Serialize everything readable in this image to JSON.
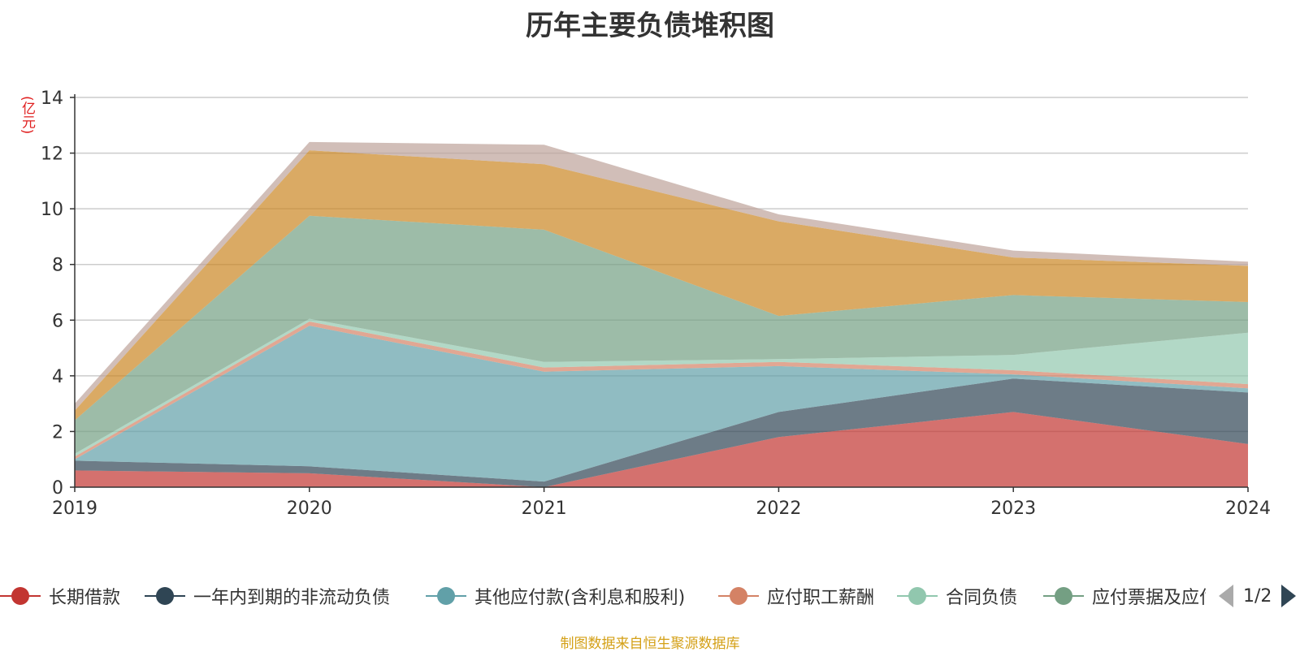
{
  "chart_data": {
    "type": "area",
    "title": "历年主要负债堆积图",
    "ylabel": "(亿元)",
    "xlabel": "",
    "ylim": [
      0,
      14
    ],
    "yticks": [
      0,
      2,
      4,
      6,
      8,
      10,
      12,
      14
    ],
    "categories": [
      "2019",
      "2020",
      "2021",
      "2022",
      "2023",
      "2024"
    ],
    "stacked": true,
    "grid": true,
    "series": [
      {
        "name": "长期借款",
        "color": "#c23531",
        "values": [
          0.6,
          0.5,
          0.0,
          1.8,
          2.7,
          1.55
        ]
      },
      {
        "name": "一年内到期的非流动负债",
        "color": "#2f4554",
        "values": [
          0.35,
          0.25,
          0.2,
          0.9,
          1.2,
          1.85
        ]
      },
      {
        "name": "其他应付款(含利息和股利)",
        "color": "#61a0a8",
        "values": [
          0.05,
          5.05,
          3.95,
          1.65,
          0.15,
          0.15
        ]
      },
      {
        "name": "应付职工薪酬",
        "color": "#d48265",
        "values": [
          0.1,
          0.15,
          0.15,
          0.15,
          0.15,
          0.15
        ]
      },
      {
        "name": "合同负债",
        "color": "#91c7ae",
        "values": [
          0.1,
          0.1,
          0.2,
          0.1,
          0.55,
          1.85
        ]
      },
      {
        "name": "应付票据及应付账款",
        "color": "#749f83",
        "values": [
          1.2,
          3.7,
          4.75,
          1.55,
          2.15,
          1.1
        ]
      },
      {
        "name": "",
        "color": "#ca8622",
        "values": [
          0.35,
          2.35,
          2.35,
          3.4,
          1.35,
          1.3
        ]
      },
      {
        "name": "",
        "color": "#bda29a",
        "values": [
          0.25,
          0.3,
          0.7,
          0.25,
          0.25,
          0.15
        ]
      }
    ]
  },
  "legend": {
    "items": [
      {
        "label": "长期借款",
        "color": "#c23531"
      },
      {
        "label": "一年内到期的非流动负债",
        "color": "#2f4554"
      },
      {
        "label": "其他应付款(含利息和股利)",
        "color": "#61a0a8"
      },
      {
        "label": "应付职工薪酬",
        "color": "#d48265"
      },
      {
        "label": "合同负债",
        "color": "#91c7ae"
      },
      {
        "label": "应付票据及应付账款",
        "color": "#749f83"
      }
    ],
    "page_text": "1/2"
  },
  "footer": "制图数据来自恒生聚源数据库"
}
